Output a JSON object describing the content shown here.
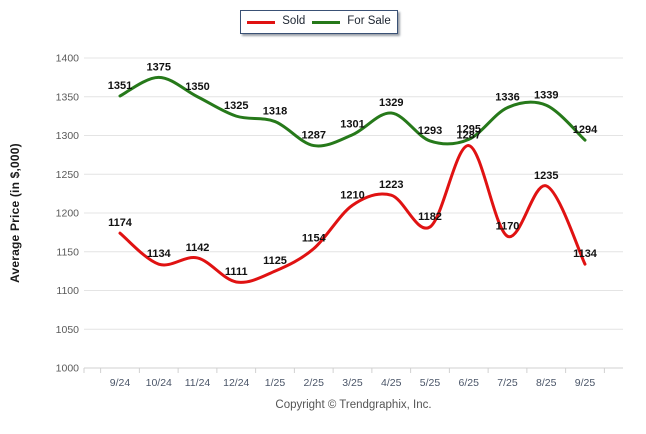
{
  "chart_data": {
    "type": "line",
    "categories": [
      "9/24",
      "10/24",
      "11/24",
      "12/24",
      "1/25",
      "2/25",
      "3/25",
      "4/25",
      "5/25",
      "6/25",
      "7/25",
      "8/25",
      "9/25"
    ],
    "series": [
      {
        "name": "Sold",
        "color": "#e01212",
        "values": [
          1174,
          1134,
          1142,
          1111,
          1125,
          1154,
          1210,
          1223,
          1182,
          1287,
          1170,
          1235,
          1134
        ]
      },
      {
        "name": "For Sale",
        "color": "#26791a",
        "values": [
          1351,
          1375,
          1350,
          1325,
          1318,
          1287,
          1301,
          1329,
          1293,
          1295,
          1336,
          1339,
          1294
        ]
      }
    ],
    "title": "",
    "xlabel": "",
    "ylabel": "Average Price (in $,000)",
    "ylim": [
      1000,
      1400
    ],
    "ytick_step": 50,
    "yticks": [
      1000,
      1050,
      1100,
      1150,
      1200,
      1250,
      1300,
      1350,
      1400
    ],
    "grid": "horizontal",
    "legend_position": "top-center",
    "footer": "Copyright © Trendgraphix, Inc.",
    "colors": {
      "grid": "#e4e4e4",
      "axis": "#d0d0d0",
      "ytick_text": "#5a5a5a",
      "xtick_text": "#4a5568",
      "data_label": "#111111",
      "legend_border": "#3a5175"
    }
  }
}
